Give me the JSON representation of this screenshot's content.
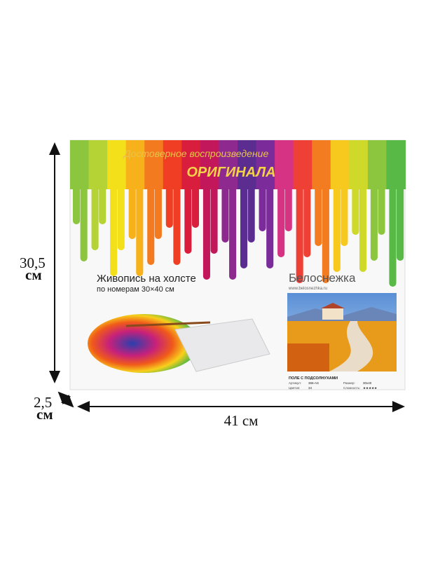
{
  "header": {
    "tagline": "Достоверное воспроизведение",
    "tagline_emphasis": "ОРИГИНАЛА"
  },
  "product": {
    "title": "Живопись на холсте",
    "subtitle": "по номерам 30×40 см",
    "brand": "Белоснежка",
    "website": "www.belosnezhka.ru",
    "painting_title": "ПОЛЕ С ПОДСОЛНУХАМИ",
    "specs": [
      {
        "label": "Артикул:",
        "value": "366-AS"
      },
      {
        "label": "Размер:",
        "value": "30х40"
      },
      {
        "label": "Цветов:",
        "value": "34"
      },
      {
        "label": "Сложность:",
        "value": "★★★★★"
      }
    ]
  },
  "dimensions": {
    "height": {
      "value": "30,5",
      "unit": "см"
    },
    "depth": {
      "value": "2,5",
      "unit": "см"
    },
    "width": "41 см"
  }
}
